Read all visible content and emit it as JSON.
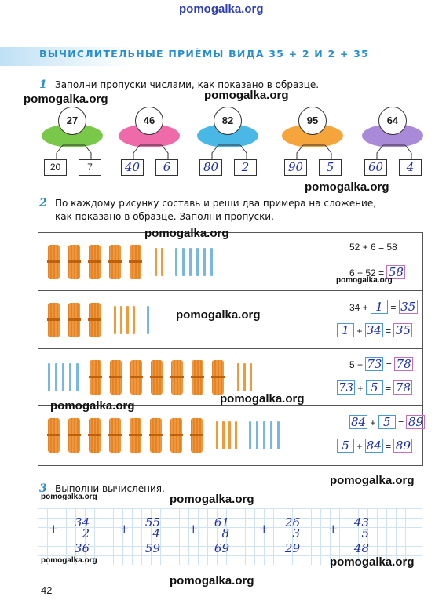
{
  "watermark": "pomogalka.org",
  "page_title": "ВЫЧИСЛИТЕЛЬНЫЕ ПРИЁМЫ ВИДА 35 + 2 И 2 + 35",
  "task1": {
    "number": "1",
    "text": "Заполни пропуски числами, как показано в образце.",
    "items": [
      {
        "total": "27",
        "left": "20",
        "right": "7",
        "color": "#79c84a"
      },
      {
        "total": "46",
        "left": "40",
        "right": "6",
        "color": "#ee6aa8"
      },
      {
        "total": "82",
        "left": "80",
        "right": "2",
        "color": "#49b8e6"
      },
      {
        "total": "95",
        "left": "90",
        "right": "5",
        "color": "#f6a53c"
      },
      {
        "total": "64",
        "left": "60",
        "right": "4",
        "color": "#a98ad9"
      }
    ]
  },
  "task2": {
    "number": "2",
    "text_line1": "По каждому рисунку составь и реши два примера на сложение,",
    "text_line2": "как показано в образце. Заполни пропуски.",
    "rows": [
      {
        "a": "52",
        "b": "6",
        "sum": "58",
        "c": "6",
        "d": "52",
        "sum2": "58"
      },
      {
        "a": "34",
        "b": "1",
        "sum": "35",
        "c": "1",
        "d": "34",
        "sum2": "35"
      },
      {
        "a": "5",
        "b": "73",
        "sum": "78",
        "c": "73",
        "d": "5",
        "sum2": "78"
      },
      {
        "a": "84",
        "b": "5",
        "sum": "89",
        "c": "5",
        "d": "84",
        "sum2": "89"
      }
    ],
    "plus": "+",
    "eq": "="
  },
  "task3": {
    "number": "3",
    "text": "Выполни вычисления.",
    "examples": [
      {
        "a": "34",
        "b": "2",
        "r": "36"
      },
      {
        "a": "55",
        "b": "4",
        "r": "59"
      },
      {
        "a": "61",
        "b": "8",
        "r": "69"
      },
      {
        "a": "26",
        "b": "3",
        "r": "29"
      },
      {
        "a": "43",
        "b": "5",
        "r": "48"
      }
    ]
  },
  "page_number": "42"
}
